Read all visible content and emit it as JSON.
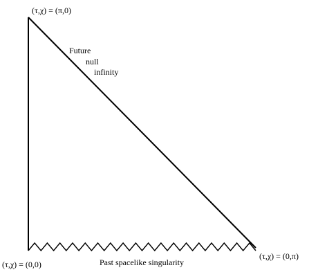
{
  "labels": {
    "top_corner": "(τ,χ) = (π,0)",
    "bottom_left_corner": "(τ,χ) = (0,0)",
    "bottom_right_corner": "(τ,χ) = (0,π)",
    "future_null_infinity": [
      "Future",
      "null",
      "infinity"
    ],
    "past_singularity": "Past spacelike singularity"
  },
  "colors": {
    "stroke": "#000000",
    "background": "#ffffff"
  }
}
